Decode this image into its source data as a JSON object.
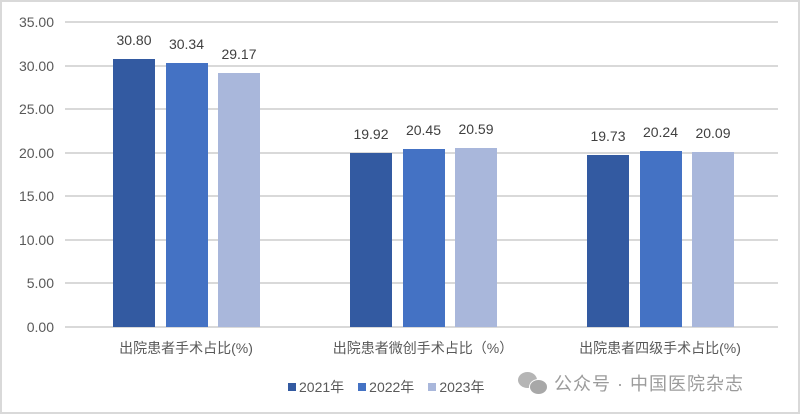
{
  "chart_data": {
    "type": "bar",
    "title": "",
    "xlabel": "",
    "ylabel": "",
    "ylim": [
      0,
      35
    ],
    "yticks": [
      "0.00",
      "5.00",
      "10.00",
      "15.00",
      "20.00",
      "25.00",
      "30.00",
      "35.00"
    ],
    "grid": true,
    "legend_position": "bottom",
    "categories": [
      "出院患者手术占比(%)",
      "出院患者微创手术占比（%）",
      "出院患者四级手术占比(%)"
    ],
    "series": [
      {
        "name": "2021年",
        "color": "#335aa1",
        "values": [
          30.8,
          19.92,
          19.73
        ],
        "labels": [
          "30.80",
          "19.92",
          "19.73"
        ]
      },
      {
        "name": "2022年",
        "color": "#4472c4",
        "values": [
          30.34,
          20.45,
          20.24
        ],
        "labels": [
          "30.34",
          "20.45",
          "20.24"
        ]
      },
      {
        "name": "2023年",
        "color": "#a9b7db",
        "values": [
          29.17,
          20.59,
          20.09
        ],
        "labels": [
          "29.17",
          "20.59",
          "20.09"
        ]
      }
    ]
  },
  "watermark": {
    "icon": "wechat-icon",
    "text": "公众号 · 中国医院杂志"
  }
}
